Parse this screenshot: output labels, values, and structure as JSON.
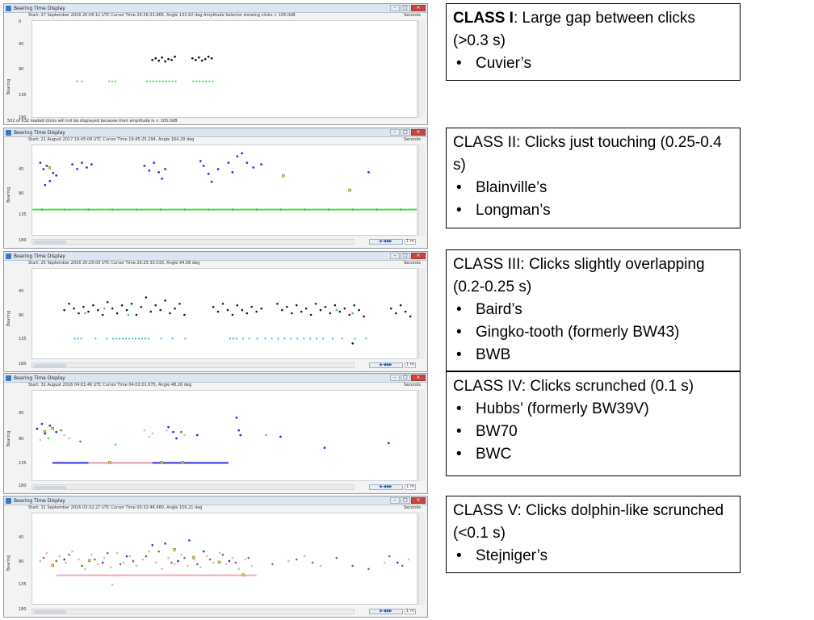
{
  "window_title": "Bearing Time Display",
  "y_axis_label": "Bearing",
  "seconds_label": "Seconds",
  "span_label": "1 m",
  "play_controls": "▶◀◆▶",
  "windows": [
    {
      "info": "Start: 27 September 2016 20:56:11 UTC  Cursor Time 20:56:31.865, Angle 132.62 deg    Amplitude Selector showing clicks > 105.0dB",
      "y_ticks": [
        "0",
        "45",
        "90",
        "135",
        "180"
      ],
      "status": "502 of 632 loaded clicks will not be displayed because their amplitude is < 105.0dB"
    },
    {
      "info": "Start: 21 August 2017 19:45:08 UTC  Cursor Time 19:45:25.294, Angle 164.29 deg",
      "y_ticks": [
        "0",
        "45",
        "90",
        "135",
        "180"
      ],
      "status": ""
    },
    {
      "info": "Start: 25 September 2016 20:25:05 UTC  Cursor Time 20:25:33.033, Angle 94.08 deg",
      "y_ticks": [
        "0",
        "45",
        "90",
        "135",
        "180"
      ],
      "status": ""
    },
    {
      "info": "Start: 31 August 2016 04:01:46 UTC  Cursor Time 04:02:01.675, Angle 48.26 deg",
      "y_ticks": [
        "0",
        "45",
        "90",
        "135",
        "180"
      ],
      "status": ""
    },
    {
      "info": "Start: 31 September 2016 03:32:27 UTC  Cursor Time 03:32:46.480, Angle 156.21 deg",
      "y_ticks": [
        "0",
        "45",
        "90",
        "135",
        "180"
      ],
      "status": ""
    }
  ],
  "classes": [
    {
      "head_bold": "CLASS I",
      "head_rest": ": Large gap between clicks (>0.3 s)",
      "items": [
        "Cuvier’s"
      ]
    },
    {
      "head_bold": "",
      "head_rest": "CLASS II: Clicks just touching (0.25-0.4 s)",
      "items": [
        "Blainville’s",
        "Longman’s"
      ]
    },
    {
      "head_bold": "",
      "head_rest": "CLASS III: Clicks slightly overlapping (0.2-0.25 s)",
      "items": [
        "Baird’s",
        "Gingko-tooth (formerly BW43)",
        "BWB"
      ]
    },
    {
      "head_bold": "",
      "head_rest": "CLASS IV: Clicks scrunched (0.1 s)",
      "items": [
        "Hubbs’ (formerly BW39V)",
        "BW70",
        "BWC"
      ]
    },
    {
      "head_bold": "",
      "head_rest": "CLASS V: Clicks dolphin-like scrunched (<0.1 s)",
      "items": [
        "Stejniger’s"
      ]
    }
  ],
  "colors": {
    "green": "#39e639",
    "black": "#1a1a1a",
    "blue": "#2c2ce0",
    "cyan": "#3fb8e6",
    "pink": "#f4a9b4",
    "brown": "#8a6a3c",
    "yellow": "#e8e820"
  }
}
